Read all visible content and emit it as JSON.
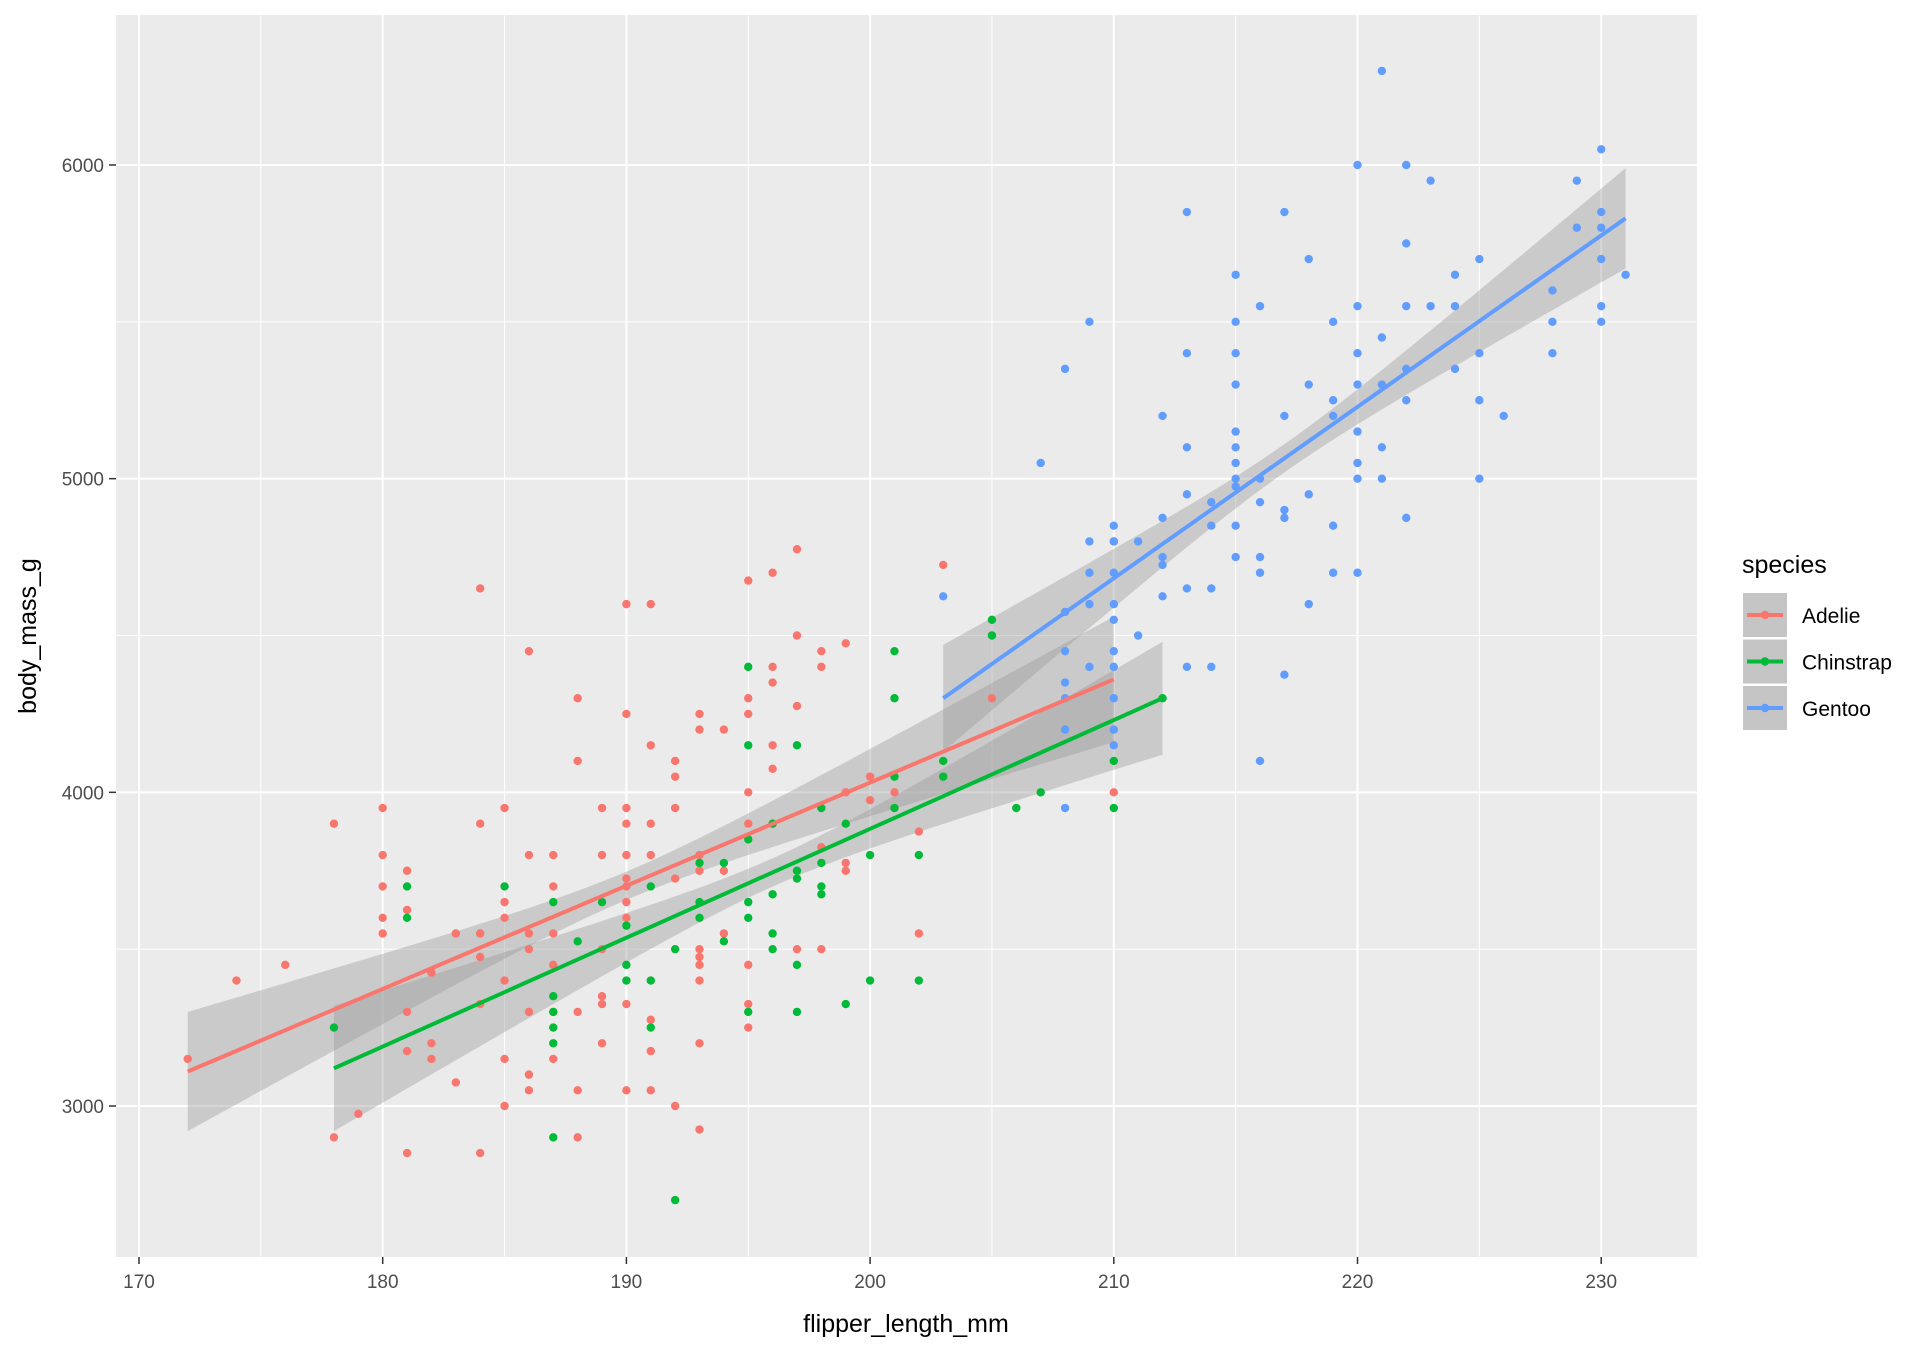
{
  "chart_data": {
    "type": "scatter",
    "xlabel": "flipper_length_mm",
    "ylabel": "body_mass_g",
    "xlim": [
      169,
      234
    ],
    "ylim": [
      2519,
      6478
    ],
    "xticks": [
      170,
      180,
      190,
      200,
      210,
      220,
      230
    ],
    "yticks": [
      3000,
      4000,
      5000,
      6000
    ],
    "grid": true,
    "legend": {
      "title": "species",
      "position": "right"
    },
    "series": [
      {
        "name": "Adelie",
        "color": "#F8766D",
        "fit": [
          [
            172,
            3110
          ],
          [
            210,
            4360
          ]
        ],
        "ci": [
          [
            172,
            2920,
            3300
          ],
          [
            190,
            3657,
            3747
          ],
          [
            210,
            4160,
            4560
          ]
        ],
        "points": [
          [
            172,
            3150
          ],
          [
            174,
            3400
          ],
          [
            176,
            3450
          ],
          [
            178,
            3900
          ],
          [
            178,
            2900
          ],
          [
            179,
            2975
          ],
          [
            180,
            3950
          ],
          [
            180,
            3800
          ],
          [
            180,
            3700
          ],
          [
            180,
            3600
          ],
          [
            180,
            3550
          ],
          [
            181,
            3750
          ],
          [
            181,
            3625
          ],
          [
            181,
            3300
          ],
          [
            181,
            3175
          ],
          [
            181,
            2850
          ],
          [
            182,
            3425
          ],
          [
            182,
            3200
          ],
          [
            182,
            3150
          ],
          [
            183,
            3550
          ],
          [
            183,
            3075
          ],
          [
            184,
            4650
          ],
          [
            184,
            3900
          ],
          [
            184,
            3550
          ],
          [
            184,
            3475
          ],
          [
            184,
            3325
          ],
          [
            184,
            2850
          ],
          [
            185,
            3950
          ],
          [
            185,
            3650
          ],
          [
            185,
            3600
          ],
          [
            185,
            3400
          ],
          [
            185,
            3150
          ],
          [
            185,
            3000
          ],
          [
            186,
            4450
          ],
          [
            186,
            3800
          ],
          [
            186,
            3550
          ],
          [
            186,
            3500
          ],
          [
            186,
            3300
          ],
          [
            186,
            3100
          ],
          [
            186,
            3050
          ],
          [
            187,
            3800
          ],
          [
            187,
            3700
          ],
          [
            187,
            3550
          ],
          [
            187,
            3450
          ],
          [
            187,
            3300
          ],
          [
            187,
            3150
          ],
          [
            188,
            4300
          ],
          [
            188,
            4100
          ],
          [
            188,
            3300
          ],
          [
            188,
            3050
          ],
          [
            188,
            2900
          ],
          [
            189,
            3950
          ],
          [
            189,
            3800
          ],
          [
            189,
            3500
          ],
          [
            189,
            3350
          ],
          [
            189,
            3325
          ],
          [
            189,
            3200
          ],
          [
            190,
            4600
          ],
          [
            190,
            4250
          ],
          [
            190,
            3950
          ],
          [
            190,
            3900
          ],
          [
            190,
            3800
          ],
          [
            190,
            3725
          ],
          [
            190,
            3700
          ],
          [
            190,
            3650
          ],
          [
            190,
            3600
          ],
          [
            190,
            3325
          ],
          [
            190,
            3050
          ],
          [
            191,
            4600
          ],
          [
            191,
            4150
          ],
          [
            191,
            3900
          ],
          [
            191,
            3800
          ],
          [
            191,
            3275
          ],
          [
            191,
            3175
          ],
          [
            191,
            3050
          ],
          [
            192,
            4100
          ],
          [
            192,
            4050
          ],
          [
            192,
            3950
          ],
          [
            192,
            3725
          ],
          [
            192,
            3000
          ],
          [
            193,
            4250
          ],
          [
            193,
            4200
          ],
          [
            193,
            3800
          ],
          [
            193,
            3750
          ],
          [
            193,
            3500
          ],
          [
            193,
            3475
          ],
          [
            193,
            3450
          ],
          [
            193,
            3400
          ],
          [
            193,
            3200
          ],
          [
            193,
            2925
          ],
          [
            194,
            4200
          ],
          [
            194,
            3750
          ],
          [
            194,
            3550
          ],
          [
            195,
            4675
          ],
          [
            195,
            4300
          ],
          [
            195,
            4250
          ],
          [
            195,
            4000
          ],
          [
            195,
            3900
          ],
          [
            195,
            3450
          ],
          [
            195,
            3325
          ],
          [
            195,
            3250
          ],
          [
            196,
            4700
          ],
          [
            196,
            4400
          ],
          [
            196,
            4350
          ],
          [
            196,
            4150
          ],
          [
            196,
            4075
          ],
          [
            196,
            3900
          ],
          [
            197,
            4775
          ],
          [
            197,
            4500
          ],
          [
            197,
            4275
          ],
          [
            197,
            3500
          ],
          [
            198,
            4450
          ],
          [
            198,
            4400
          ],
          [
            198,
            3825
          ],
          [
            198,
            3500
          ],
          [
            199,
            4475
          ],
          [
            199,
            4000
          ],
          [
            199,
            3775
          ],
          [
            199,
            3750
          ],
          [
            200,
            4050
          ],
          [
            200,
            3975
          ],
          [
            201,
            4000
          ],
          [
            201,
            3950
          ],
          [
            202,
            3875
          ],
          [
            202,
            3550
          ],
          [
            203,
            4725
          ],
          [
            205,
            4300
          ],
          [
            210,
            4000
          ]
        ]
      },
      {
        "name": "Chinstrap",
        "color": "#00BA38",
        "fit": [
          [
            178,
            3120
          ],
          [
            212,
            4300
          ]
        ],
        "ci": [
          [
            178,
            2920,
            3320
          ],
          [
            196,
            3700,
            3790
          ],
          [
            212,
            4120,
            4480
          ]
        ],
        "points": [
          [
            178,
            3250
          ],
          [
            181,
            3700
          ],
          [
            181,
            3600
          ],
          [
            185,
            3700
          ],
          [
            187,
            3650
          ],
          [
            187,
            3350
          ],
          [
            187,
            3300
          ],
          [
            187,
            3200
          ],
          [
            187,
            3250
          ],
          [
            187,
            2900
          ],
          [
            188,
            3525
          ],
          [
            189,
            3650
          ],
          [
            190,
            3450
          ],
          [
            190,
            3400
          ],
          [
            190,
            3575
          ],
          [
            191,
            3700
          ],
          [
            191,
            3400
          ],
          [
            191,
            3250
          ],
          [
            192,
            2700
          ],
          [
            192,
            3500
          ],
          [
            193,
            3775
          ],
          [
            193,
            3650
          ],
          [
            193,
            3600
          ],
          [
            194,
            3775
          ],
          [
            194,
            3525
          ],
          [
            195,
            4400
          ],
          [
            195,
            4150
          ],
          [
            195,
            3850
          ],
          [
            195,
            3650
          ],
          [
            195,
            3600
          ],
          [
            195,
            3300
          ],
          [
            196,
            3675
          ],
          [
            196,
            3550
          ],
          [
            196,
            3500
          ],
          [
            196,
            3900
          ],
          [
            197,
            4150
          ],
          [
            197,
            3725
          ],
          [
            197,
            3750
          ],
          [
            197,
            3450
          ],
          [
            197,
            3300
          ],
          [
            198,
            3950
          ],
          [
            198,
            3775
          ],
          [
            198,
            3700
          ],
          [
            198,
            3675
          ],
          [
            199,
            3325
          ],
          [
            199,
            3900
          ],
          [
            200,
            3800
          ],
          [
            200,
            3400
          ],
          [
            201,
            4450
          ],
          [
            201,
            4300
          ],
          [
            201,
            4050
          ],
          [
            201,
            3950
          ],
          [
            202,
            3800
          ],
          [
            202,
            3400
          ],
          [
            203,
            4100
          ],
          [
            203,
            4050
          ],
          [
            205,
            4550
          ],
          [
            205,
            4500
          ],
          [
            206,
            3950
          ],
          [
            207,
            4000
          ],
          [
            210,
            4800
          ],
          [
            210,
            4100
          ],
          [
            210,
            3950
          ],
          [
            212,
            4300
          ]
        ]
      },
      {
        "name": "Gentoo",
        "color": "#619CFF",
        "fit": [
          [
            203,
            4300
          ],
          [
            231,
            5830
          ]
        ],
        "ci": [
          [
            203,
            4130,
            4470
          ],
          [
            217,
            5020,
            5110
          ],
          [
            231,
            5670,
            5990
          ]
        ],
        "points": [
          [
            203,
            4625
          ],
          [
            207,
            5050
          ],
          [
            208,
            5350
          ],
          [
            208,
            4575
          ],
          [
            208,
            4450
          ],
          [
            208,
            4350
          ],
          [
            208,
            4300
          ],
          [
            208,
            4200
          ],
          [
            208,
            3950
          ],
          [
            209,
            5500
          ],
          [
            209,
            4800
          ],
          [
            209,
            4700
          ],
          [
            209,
            4600
          ],
          [
            209,
            4400
          ],
          [
            210,
            4850
          ],
          [
            210,
            4800
          ],
          [
            210,
            4700
          ],
          [
            210,
            4600
          ],
          [
            210,
            4550
          ],
          [
            210,
            4450
          ],
          [
            210,
            4400
          ],
          [
            210,
            4300
          ],
          [
            210,
            4200
          ],
          [
            210,
            4150
          ],
          [
            211,
            4800
          ],
          [
            211,
            4500
          ],
          [
            212,
            5200
          ],
          [
            212,
            4875
          ],
          [
            212,
            4750
          ],
          [
            212,
            4725
          ],
          [
            212,
            4625
          ],
          [
            213,
            5850
          ],
          [
            213,
            5400
          ],
          [
            213,
            5100
          ],
          [
            213,
            4950
          ],
          [
            213,
            4650
          ],
          [
            213,
            4400
          ],
          [
            214,
            4925
          ],
          [
            214,
            4850
          ],
          [
            214,
            4650
          ],
          [
            214,
            4400
          ],
          [
            215,
            5650
          ],
          [
            215,
            5500
          ],
          [
            215,
            5400
          ],
          [
            215,
            5300
          ],
          [
            215,
            5150
          ],
          [
            215,
            5100
          ],
          [
            215,
            5050
          ],
          [
            215,
            5000
          ],
          [
            215,
            4975
          ],
          [
            215,
            4850
          ],
          [
            215,
            4750
          ],
          [
            216,
            5550
          ],
          [
            216,
            5000
          ],
          [
            216,
            4925
          ],
          [
            216,
            4750
          ],
          [
            216,
            4700
          ],
          [
            216,
            4100
          ],
          [
            217,
            5850
          ],
          [
            217,
            5200
          ],
          [
            217,
            4900
          ],
          [
            217,
            4875
          ],
          [
            217,
            4375
          ],
          [
            218,
            5700
          ],
          [
            218,
            5300
          ],
          [
            218,
            4950
          ],
          [
            218,
            4600
          ],
          [
            219,
            5500
          ],
          [
            219,
            5250
          ],
          [
            219,
            5200
          ],
          [
            219,
            4850
          ],
          [
            219,
            4700
          ],
          [
            220,
            6000
          ],
          [
            220,
            5550
          ],
          [
            220,
            5400
          ],
          [
            220,
            5300
          ],
          [
            220,
            5150
          ],
          [
            220,
            5050
          ],
          [
            220,
            5000
          ],
          [
            220,
            4700
          ],
          [
            221,
            6300
          ],
          [
            221,
            5450
          ],
          [
            221,
            5300
          ],
          [
            221,
            5100
          ],
          [
            221,
            5000
          ],
          [
            222,
            6000
          ],
          [
            222,
            5750
          ],
          [
            222,
            5550
          ],
          [
            222,
            5350
          ],
          [
            222,
            5250
          ],
          [
            222,
            4875
          ],
          [
            223,
            5950
          ],
          [
            223,
            5550
          ],
          [
            224,
            5650
          ],
          [
            224,
            5550
          ],
          [
            224,
            5350
          ],
          [
            225,
            5700
          ],
          [
            225,
            5400
          ],
          [
            225,
            5250
          ],
          [
            225,
            5000
          ],
          [
            226,
            5200
          ],
          [
            228,
            5600
          ],
          [
            228,
            5500
          ],
          [
            228,
            5400
          ],
          [
            229,
            5950
          ],
          [
            229,
            5800
          ],
          [
            230,
            6050
          ],
          [
            230,
            5850
          ],
          [
            230,
            5800
          ],
          [
            230,
            5700
          ],
          [
            230,
            5550
          ],
          [
            230,
            5500
          ],
          [
            231,
            5650
          ]
        ]
      }
    ]
  }
}
